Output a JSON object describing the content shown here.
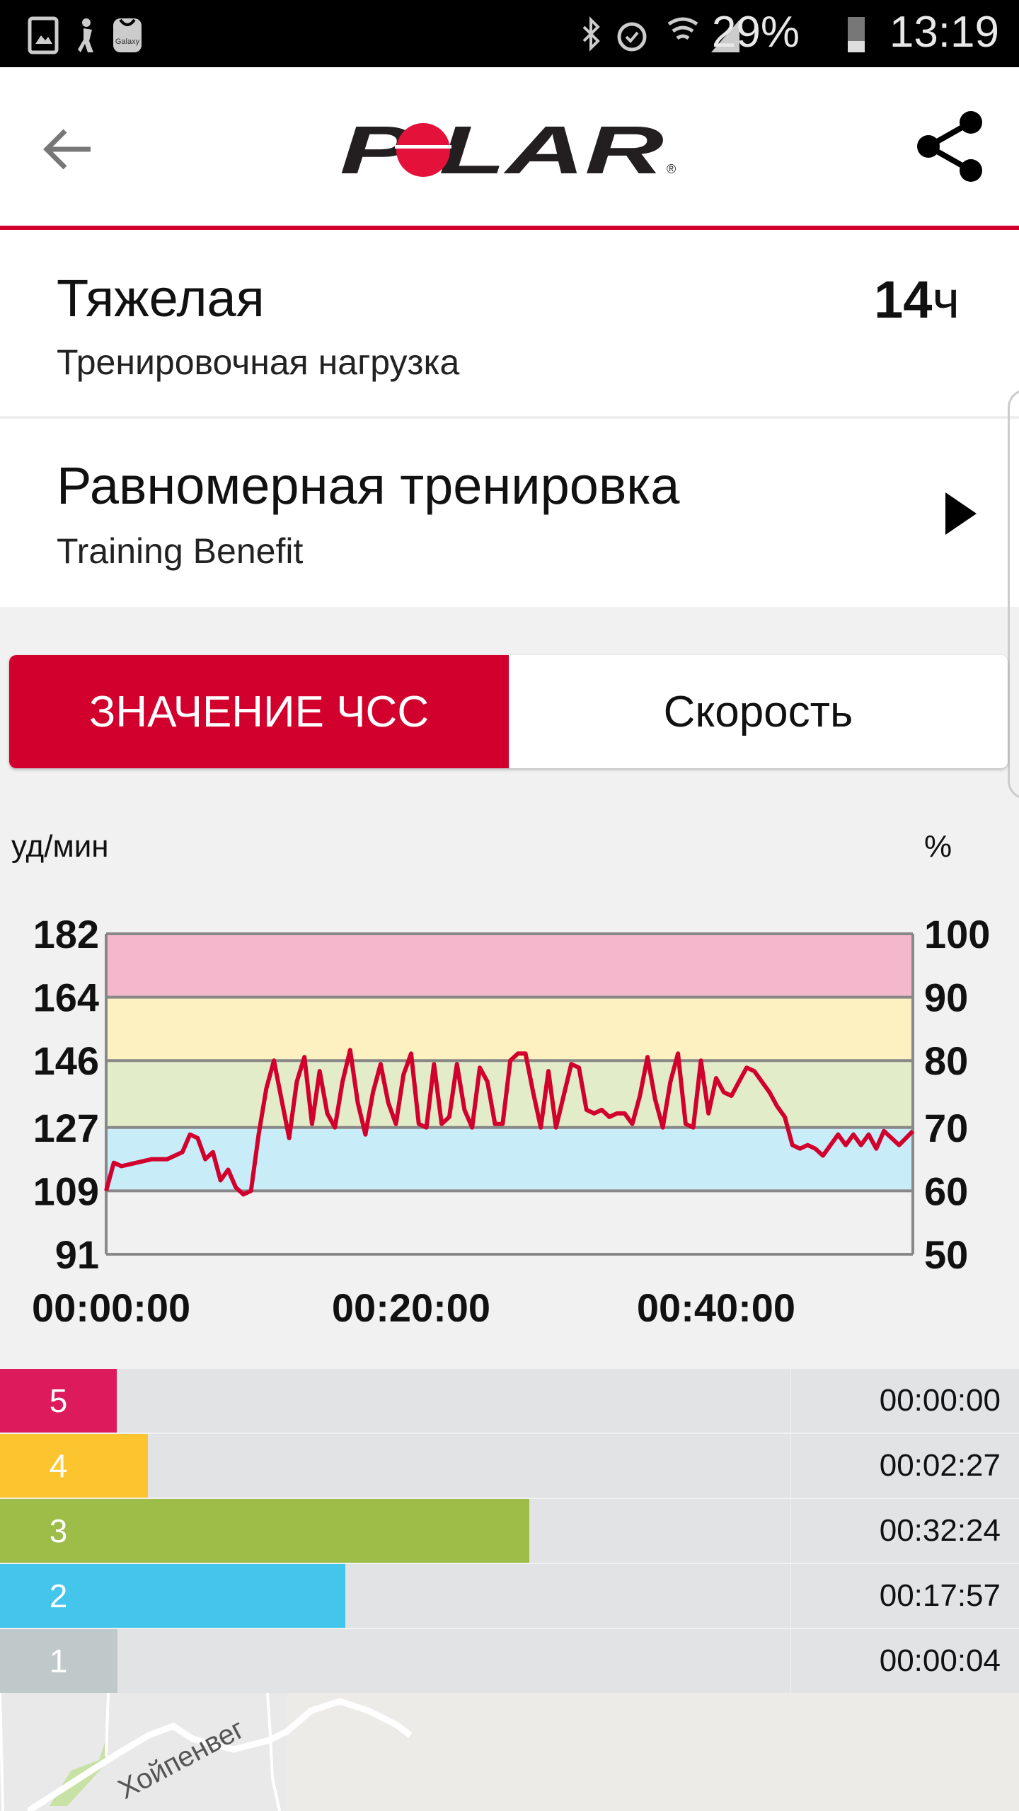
{
  "status_bar": {
    "battery": "29%",
    "time": "13:19",
    "icons": [
      "gallery-icon",
      "fitness-icon",
      "galaxy-apps-icon",
      "bluetooth-icon",
      "alarm-icon",
      "wifi-icon",
      "signal-icon",
      "battery-icon"
    ],
    "galaxy_label": "Galaxy"
  },
  "header": {
    "logo_text": "POLAR",
    "back_icon": "arrow-left-icon",
    "share_icon": "share-icon"
  },
  "training_load": {
    "title": "Тяжелая",
    "subtitle": "Тренировочная нагрузка",
    "value": "14",
    "unit": "ч"
  },
  "training_benefit": {
    "title": "Равномерная тренировка",
    "subtitle": "Training Benefit"
  },
  "tabs": [
    {
      "label": "ЗНАЧЕНИЕ ЧСС",
      "active": true
    },
    {
      "label": "Скорость",
      "active": false
    }
  ],
  "colors": {
    "accent": "#d1002c",
    "line": "#d1002c"
  },
  "chart_data": {
    "type": "line",
    "ylabel": "уд/мин",
    "ylabel_right": "%",
    "ylim": [
      91,
      182
    ],
    "y_ticks": [
      "182",
      "164",
      "146",
      "127",
      "109",
      "91"
    ],
    "y_ticks_right": [
      "100",
      "90",
      "80",
      "70",
      "60",
      "50"
    ],
    "x_ticks": [
      {
        "label": "00:00:00",
        "min": 0
      },
      {
        "label": "00:20:00",
        "min": 20
      },
      {
        "label": "00:40:00",
        "min": 40
      }
    ],
    "xlim_min": [
      0,
      52.9
    ],
    "zone_bands": [
      {
        "from": 91,
        "to": 109,
        "color": "#f0f1f0"
      },
      {
        "from": 109,
        "to": 127,
        "color": "#c8ecf8"
      },
      {
        "from": 127,
        "to": 146,
        "color": "#e2ecc9"
      },
      {
        "from": 146,
        "to": 164,
        "color": "#fdf1c2"
      },
      {
        "from": 164,
        "to": 182,
        "color": "#f4b7cb"
      }
    ],
    "x_min": [
      0,
      0.5,
      1,
      2,
      3,
      4,
      5,
      5.5,
      6,
      6.5,
      7,
      7.5,
      8,
      8.5,
      9,
      9.5,
      10,
      10.5,
      11,
      11.5,
      12,
      12.5,
      13,
      13.5,
      14,
      14.5,
      15,
      15.5,
      16,
      16.5,
      17,
      17.5,
      18,
      18.5,
      19,
      19.5,
      20,
      20.5,
      21,
      21.5,
      22,
      22.5,
      23,
      23.5,
      24,
      24.5,
      25,
      25.5,
      26,
      26.5,
      27,
      27.5,
      28,
      28.5,
      29,
      29.5,
      30,
      30.5,
      31,
      31.5,
      32,
      32.5,
      33,
      33.5,
      34,
      34.5,
      35,
      35.5,
      36,
      36.5,
      37,
      37.5,
      38,
      38.5,
      39,
      39.5,
      40,
      40.5,
      41,
      41.5,
      42,
      42.5,
      43,
      43.5,
      44,
      44.5,
      45,
      45.5,
      46,
      46.5,
      47,
      47.5,
      48,
      48.5,
      49,
      49.5,
      50,
      50.5,
      51,
      52,
      52.9
    ],
    "hr_bpm": [
      109,
      117,
      116,
      117,
      118,
      118,
      120,
      125,
      124,
      118,
      120,
      112,
      115,
      110,
      108,
      109,
      125,
      138,
      146,
      135,
      124,
      140,
      147,
      128,
      143,
      131,
      127,
      140,
      149,
      134,
      125,
      137,
      145,
      134,
      128,
      142,
      148,
      128,
      127,
      145,
      128,
      130,
      145,
      132,
      127,
      144,
      140,
      128,
      128,
      146,
      148,
      148,
      137,
      127,
      143,
      127,
      136,
      145,
      144,
      132,
      131,
      132,
      130,
      131,
      131,
      128,
      136,
      147,
      135,
      127,
      140,
      148,
      128,
      127,
      146,
      131,
      141,
      137,
      136,
      140,
      144,
      143,
      140,
      137,
      133,
      130,
      122,
      121,
      122,
      121,
      119,
      122,
      125,
      122,
      125,
      122,
      125,
      121,
      126,
      122,
      126
    ]
  },
  "zones": [
    {
      "zone": "5",
      "time": "00:00:00",
      "seconds": 0,
      "color": "#dc1a5c"
    },
    {
      "zone": "4",
      "time": "00:02:27",
      "seconds": 147,
      "color": "#fcc52f"
    },
    {
      "zone": "3",
      "time": "00:32:24",
      "seconds": 1944,
      "color": "#9dbc48"
    },
    {
      "zone": "2",
      "time": "00:17:57",
      "seconds": 1077,
      "color": "#44c5ec"
    },
    {
      "zone": "1",
      "time": "00:00:04",
      "seconds": 4,
      "color": "#c0c9c9"
    }
  ],
  "map": {
    "street_label": "Хойпенвег"
  }
}
